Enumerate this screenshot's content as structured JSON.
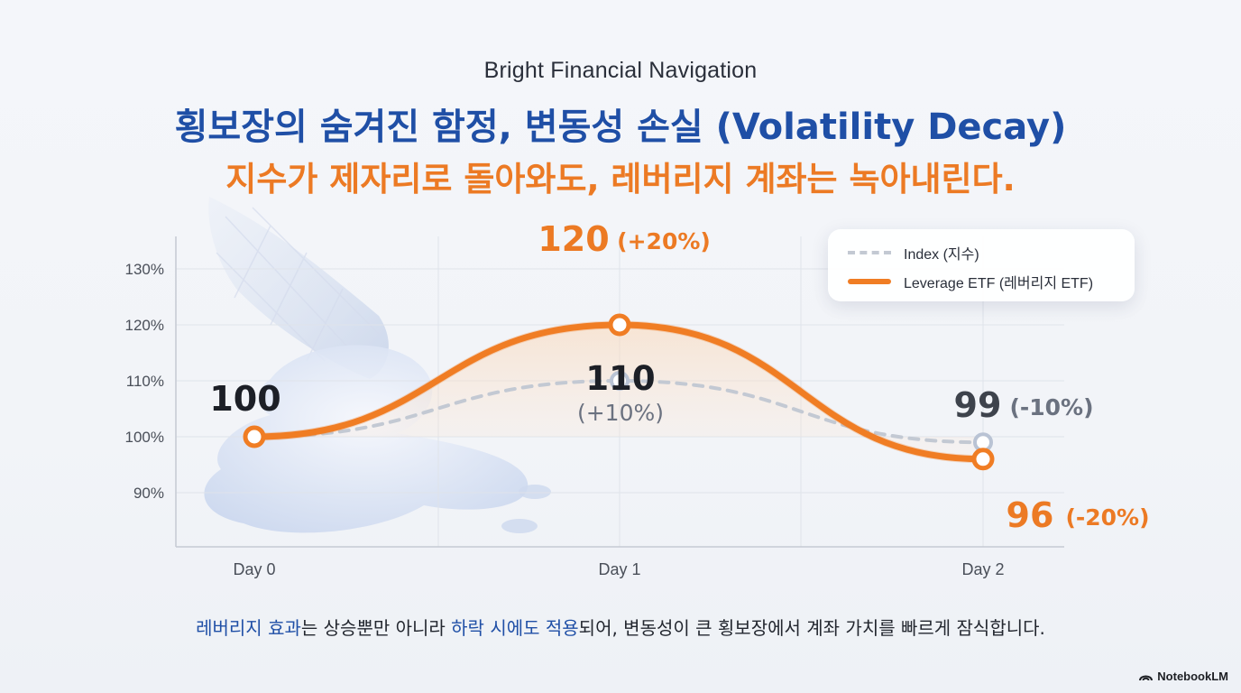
{
  "header": {
    "brand": "Bright Financial Navigation",
    "title": "횡보장의 숨겨진 함정, 변동성 손실 (Volatility Decay)",
    "subtitle": "지수가 제자리로 돌아와도, 레버리지 계좌는 녹아내린다."
  },
  "chart_data": {
    "type": "line",
    "x": [
      "Day 0",
      "Day 1",
      "Day 2"
    ],
    "yticks": [
      "90%",
      "100%",
      "110%",
      "120%",
      "130%"
    ],
    "ylim": [
      80,
      135
    ],
    "grid": true,
    "legend_position": "top-right",
    "series": [
      {
        "name": "Index (지수)",
        "values": [
          100,
          110,
          99
        ],
        "style": "dashed",
        "color": "#c3c9d3"
      },
      {
        "name": "Leverage ETF (레버리지 ETF)",
        "values": [
          100,
          120,
          96
        ],
        "style": "solid",
        "color": "#f07d24"
      }
    ],
    "annotations": {
      "start": "100",
      "index_peak_value": "110",
      "index_peak_change": "(+10%)",
      "etf_peak_value": "120",
      "etf_peak_change": "(+20%)",
      "index_end_value": "99",
      "index_end_change": "(-10%)",
      "etf_end_value": "96",
      "etf_end_change": "(-20%)"
    }
  },
  "footer": {
    "part1": "레버리지 효과",
    "part2": "는 ",
    "part3": "상승뿐만 아니라 ",
    "part4": "하락 시에도 적용",
    "part5": "되어, 변동성이 큰 횡보장에서 계좌 가치를 빠르게 잠식합니다."
  },
  "logo": {
    "text": "NotebookLM"
  },
  "colors": {
    "title_blue": "#1f4fa6",
    "accent_orange": "#ec7a24",
    "etf_line": "#f07d24",
    "index_line": "#c3c9d3"
  }
}
